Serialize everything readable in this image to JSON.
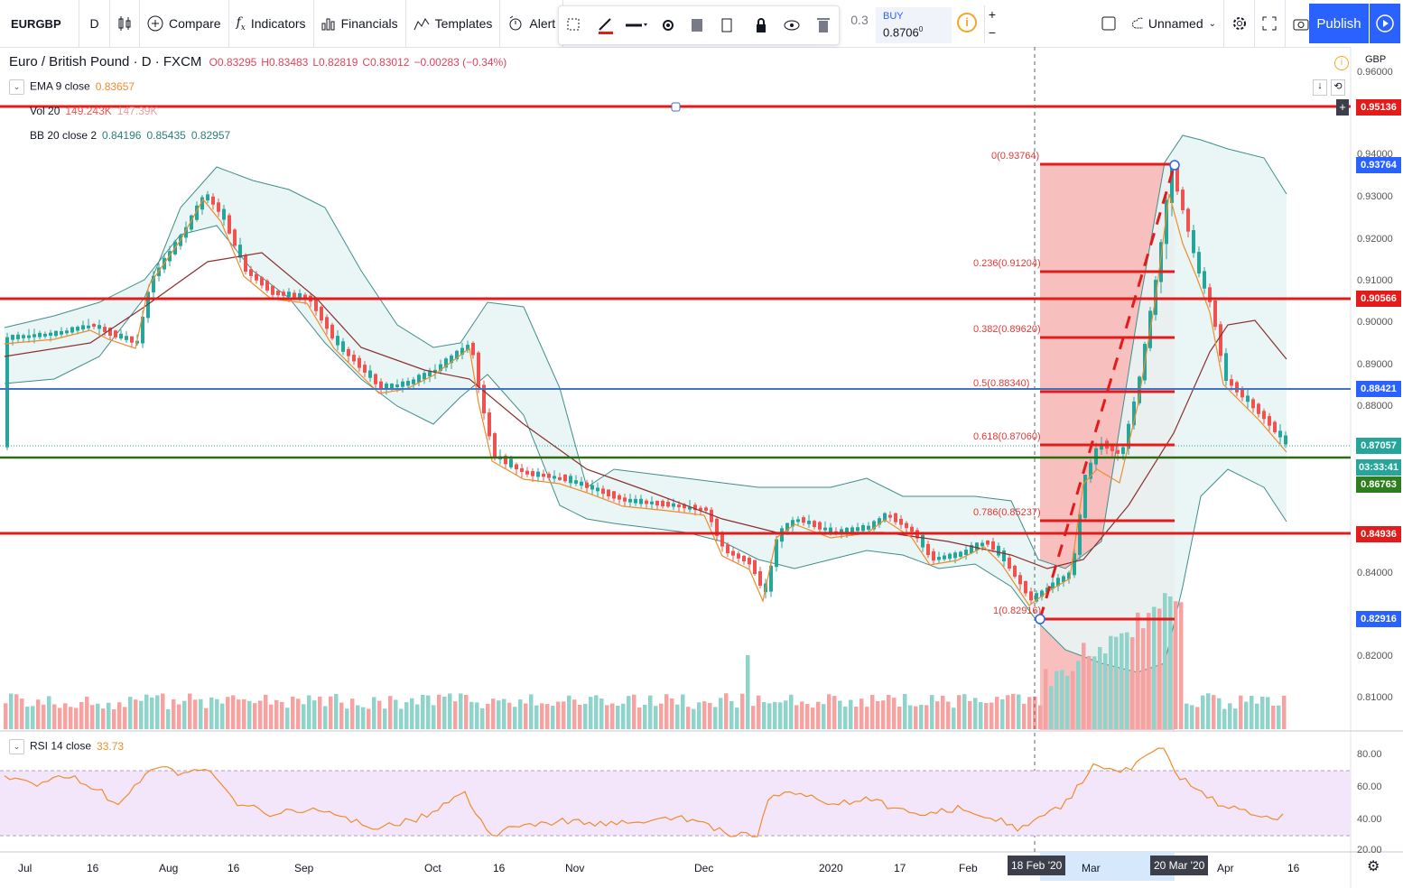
{
  "toolbar": {
    "symbol": "EURGBP",
    "interval": "D",
    "compare": "Compare",
    "indicators": "Indicators",
    "financials": "Financials",
    "templates": "Templates",
    "alert": "Alert",
    "qty": "0.3",
    "buy_label": "BUY",
    "buy_price": "0.8706",
    "buy_price_sup": "0",
    "layout_name": "Unnamed",
    "publish": "Publish"
  },
  "legend": {
    "title": "Euro / British Pound · D · FXCM",
    "open": "O0.83295",
    "high": "H0.83483",
    "low": "L0.82819",
    "close": "C0.83012",
    "change": "−0.00283 (−0.34%)",
    "ema_label": "EMA 9 close",
    "ema_value": "0.83657",
    "vol_label": "Vol 20",
    "vol_v1": "149.243K",
    "vol_v2": "147.39K",
    "bb_label": "BB 20 close 2",
    "bb_v1": "0.84196",
    "bb_v2": "0.85435",
    "bb_v3": "0.82957",
    "rsi_label": "RSI 14 close",
    "rsi_value": "33.73",
    "currency": "GBP"
  },
  "price_axis": {
    "ticks": [
      "0.96000",
      "0.94000",
      "0.93000",
      "0.92000",
      "0.91000",
      "0.90000",
      "0.89000",
      "0.88000",
      "0.84000",
      "0.82000",
      "0.81000"
    ],
    "tags": [
      {
        "text": "0.95136",
        "color": "#e31b1b"
      },
      {
        "text": "0.93764",
        "color": "#2962ff"
      },
      {
        "text": "0.90566",
        "color": "#e31b1b"
      },
      {
        "text": "0.88421",
        "color": "#2962ff"
      },
      {
        "text": "0.87057",
        "color": "#26a69a"
      },
      {
        "text": "03:33:41",
        "color": "#26a69a"
      },
      {
        "text": "0.86763",
        "color": "#2e7d1f"
      },
      {
        "text": "0.84936",
        "color": "#e31b1b"
      },
      {
        "text": "0.82916",
        "color": "#2962ff"
      }
    ]
  },
  "rsi_axis": {
    "ticks": [
      "80.00",
      "60.00",
      "40.00",
      "20.00"
    ]
  },
  "fib": [
    {
      "label": "0(0.93764)"
    },
    {
      "label": "0.236(0.91204)"
    },
    {
      "label": "0.382(0.89620)"
    },
    {
      "label": "0.5(0.88340)"
    },
    {
      "label": "0.618(0.87060)"
    },
    {
      "label": "0.786(0.85237)"
    },
    {
      "label": "1(0.82916)"
    }
  ],
  "time_axis": {
    "labels": [
      "Jul",
      "16",
      "Aug",
      "16",
      "Sep",
      "Oct",
      "16",
      "Nov",
      "Dec",
      "2020",
      "17",
      "Feb",
      "Mar",
      "Apr",
      "16"
    ],
    "badge1": "18 Feb '20",
    "badge2": "20 Mar '20"
  },
  "colors": {
    "up": "#26a69a",
    "down": "#ef5350",
    "line_red": "#e31b1b",
    "line_blue": "#4472c4",
    "line_green": "#2e6b14",
    "bb_fill": "#e8f4f4",
    "ema": "#f08c2c",
    "rsi": "#f08c2c",
    "rsi_band": "#f3e6fb"
  },
  "icons": [
    "plus-circle-icon",
    "fx-icon",
    "financials-icon",
    "templates-icon",
    "alert-icon",
    "rewind-icon",
    "camera-icon",
    "gear-icon",
    "fullscreen-icon",
    "cloud-icon"
  ]
}
